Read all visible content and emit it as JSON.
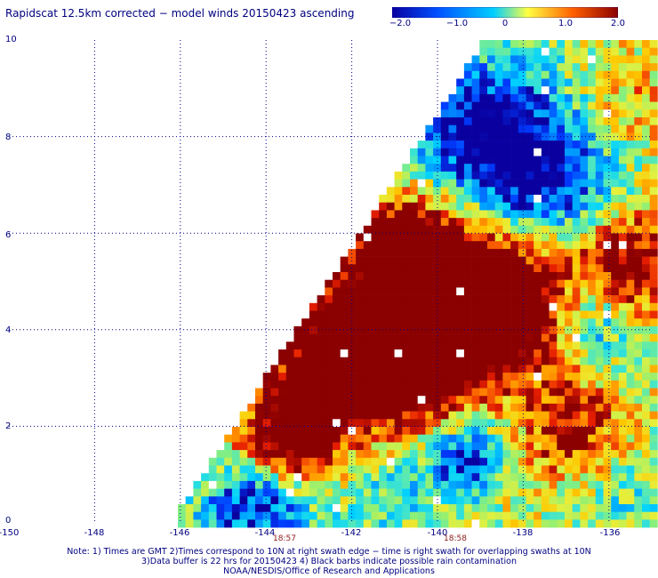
{
  "title": "Rapidscat 12.5km corrected − model winds 20150423 ascending",
  "colorbar": {
    "ticks": [
      "−2.0",
      "−1.0",
      "0",
      "1.0",
      "2.0"
    ],
    "range": [
      -2.0,
      2.0
    ],
    "colors": [
      "#0a00a0",
      "#0050ff",
      "#00d0ff",
      "#ffff40",
      "#ff6000",
      "#8b0000"
    ]
  },
  "axes": {
    "x_ticks": [
      "-150",
      "-148",
      "-146",
      "-144",
      "-142",
      "-140",
      "-138",
      "-136"
    ],
    "y_ticks": [
      "0",
      "2",
      "4",
      "6",
      "8",
      "10"
    ],
    "x_range": [
      -150,
      -135
    ],
    "y_range": [
      0,
      10
    ]
  },
  "times": [
    "18:57",
    "18:58"
  ],
  "notes": [
    "Note: 1) Times are GMT 2)Times correspond to 10N at right swath edge − time is right swath for overlapping swaths at 10N",
    "3)Data buffer is 22 hrs for 20150423 4) Black barbs indicate possible rain contamination",
    "NOAA/NESDIS/Office of Research and Applications"
  ],
  "icons": {
    "map": "wind-difference-map",
    "colorbar": "color-scale-bar"
  }
}
